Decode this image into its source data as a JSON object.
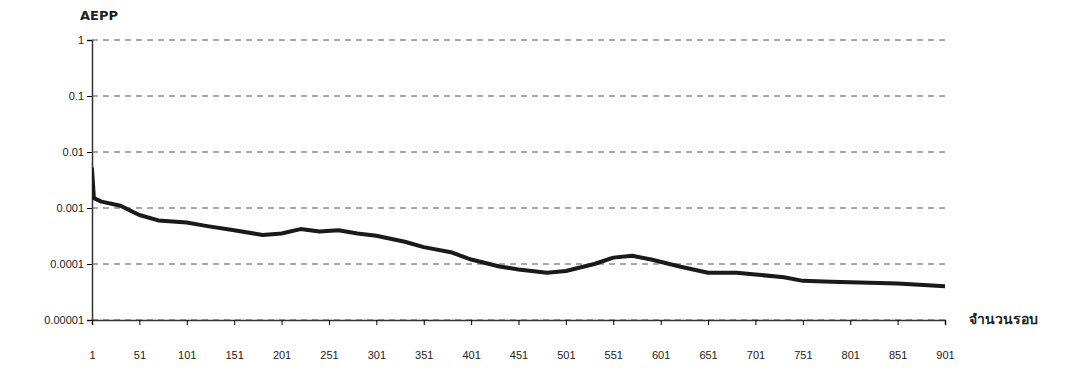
{
  "chart_data": {
    "type": "line",
    "y_label": "AEPP",
    "x_label": "จำนวนรอบ",
    "x": [
      1,
      3,
      11,
      31,
      51,
      71,
      101,
      121,
      151,
      181,
      201,
      221,
      241,
      261,
      281,
      301,
      331,
      351,
      381,
      401,
      431,
      451,
      481,
      501,
      531,
      551,
      571,
      591,
      621,
      651,
      681,
      701,
      731,
      751,
      781,
      801,
      851,
      901
    ],
    "values": [
      0.005,
      0.0015,
      0.0013,
      0.0011,
      0.00075,
      0.0006,
      0.00055,
      0.00048,
      0.0004,
      0.00033,
      0.00035,
      0.00042,
      0.00038,
      0.0004,
      0.00035,
      0.00032,
      0.00025,
      0.0002,
      0.00016,
      0.00012,
      9e-05,
      8e-05,
      7e-05,
      7.5e-05,
      0.0001,
      0.00013,
      0.00014,
      0.00012,
      9e-05,
      7e-05,
      7e-05,
      6.5e-05,
      5.8e-05,
      5e-05,
      4.8e-05,
      4.7e-05,
      4.5e-05,
      4e-05
    ],
    "color": "#1a1a1a",
    "xlim": [
      1,
      901
    ],
    "xticks": [
      1,
      51,
      101,
      151,
      201,
      251,
      301,
      351,
      401,
      451,
      501,
      551,
      601,
      651,
      701,
      751,
      801,
      851,
      901
    ],
    "ylim": [
      1e-05,
      1
    ],
    "yticks": [
      1e-05,
      0.0001,
      0.001,
      0.01,
      0.1,
      1
    ],
    "log": "y",
    "grid": true
  }
}
